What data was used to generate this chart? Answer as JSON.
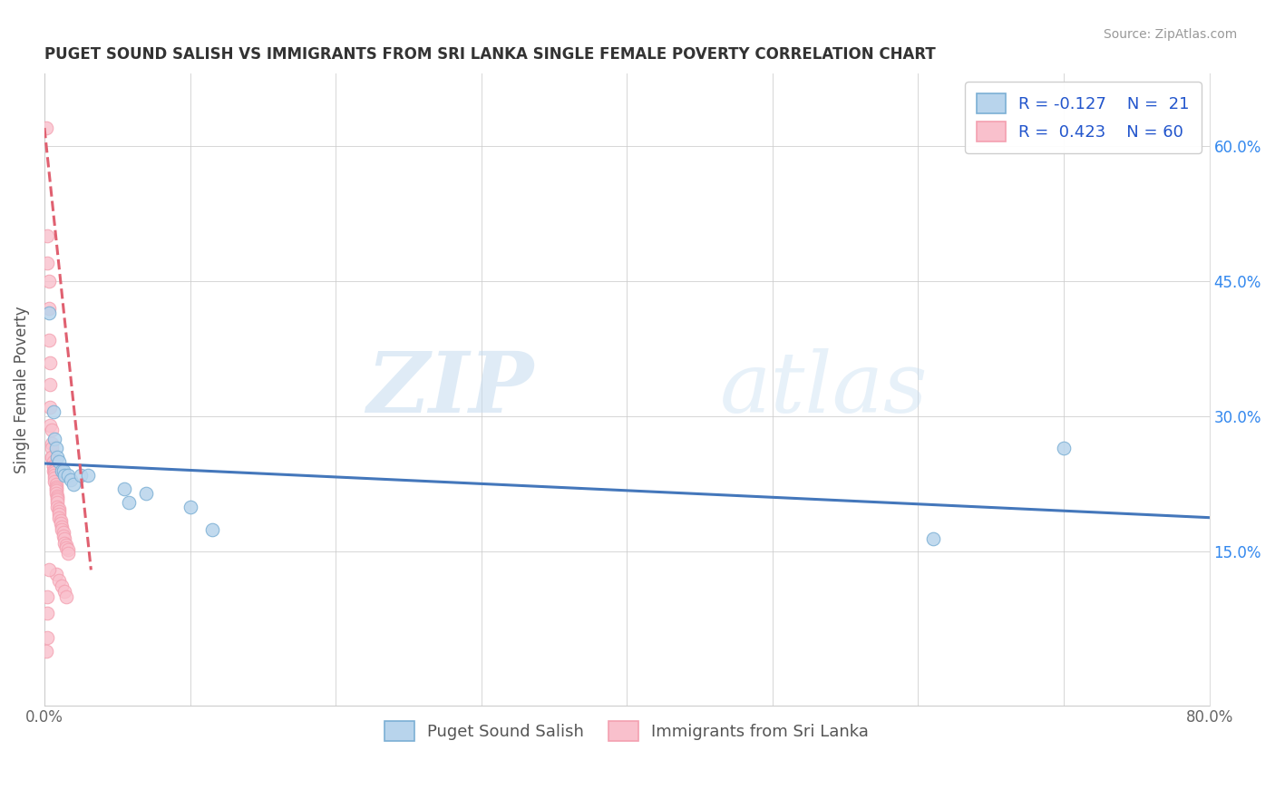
{
  "title": "PUGET SOUND SALISH VS IMMIGRANTS FROM SRI LANKA SINGLE FEMALE POVERTY CORRELATION CHART",
  "source": "Source: ZipAtlas.com",
  "ylabel": "Single Female Poverty",
  "xlim": [
    0.0,
    0.8
  ],
  "ylim": [
    -0.02,
    0.68
  ],
  "ytick_positions": [
    0.15,
    0.3,
    0.45,
    0.6
  ],
  "ytick_labels": [
    "15.0%",
    "30.0%",
    "45.0%",
    "60.0%"
  ],
  "xtick_positions": [
    0.0,
    0.1,
    0.2,
    0.3,
    0.4,
    0.5,
    0.6,
    0.7,
    0.8
  ],
  "xtick_labels": [
    "0.0%",
    "",
    "",
    "",
    "",
    "",
    "",
    "",
    "80.0%"
  ],
  "legend_labels": [
    "Puget Sound Salish",
    "Immigrants from Sri Lanka"
  ],
  "R_blue": -0.127,
  "N_blue": 21,
  "R_pink": 0.423,
  "N_pink": 60,
  "blue_color": "#7BAFD4",
  "pink_color": "#F4A0B0",
  "blue_fill": "#B8D4EC",
  "pink_fill": "#F9C0CC",
  "trend_blue_color": "#4477BB",
  "trend_pink_color": "#E06070",
  "watermark_zip": "ZIP",
  "watermark_atlas": "atlas",
  "blue_scatter": [
    [
      0.003,
      0.415
    ],
    [
      0.006,
      0.305
    ],
    [
      0.007,
      0.275
    ],
    [
      0.008,
      0.265
    ],
    [
      0.009,
      0.255
    ],
    [
      0.01,
      0.25
    ],
    [
      0.012,
      0.24
    ],
    [
      0.013,
      0.24
    ],
    [
      0.014,
      0.235
    ],
    [
      0.016,
      0.235
    ],
    [
      0.018,
      0.23
    ],
    [
      0.02,
      0.225
    ],
    [
      0.025,
      0.235
    ],
    [
      0.03,
      0.235
    ],
    [
      0.055,
      0.22
    ],
    [
      0.058,
      0.205
    ],
    [
      0.07,
      0.215
    ],
    [
      0.1,
      0.2
    ],
    [
      0.115,
      0.175
    ],
    [
      0.61,
      0.165
    ],
    [
      0.7,
      0.265
    ]
  ],
  "pink_scatter": [
    [
      0.001,
      0.62
    ],
    [
      0.002,
      0.5
    ],
    [
      0.002,
      0.47
    ],
    [
      0.003,
      0.45
    ],
    [
      0.003,
      0.42
    ],
    [
      0.003,
      0.385
    ],
    [
      0.004,
      0.36
    ],
    [
      0.004,
      0.335
    ],
    [
      0.004,
      0.31
    ],
    [
      0.004,
      0.29
    ],
    [
      0.005,
      0.285
    ],
    [
      0.005,
      0.27
    ],
    [
      0.005,
      0.265
    ],
    [
      0.005,
      0.255
    ],
    [
      0.005,
      0.255
    ],
    [
      0.006,
      0.25
    ],
    [
      0.006,
      0.245
    ],
    [
      0.006,
      0.245
    ],
    [
      0.006,
      0.24
    ],
    [
      0.007,
      0.24
    ],
    [
      0.007,
      0.238
    ],
    [
      0.007,
      0.235
    ],
    [
      0.007,
      0.232
    ],
    [
      0.007,
      0.228
    ],
    [
      0.008,
      0.225
    ],
    [
      0.008,
      0.222
    ],
    [
      0.008,
      0.22
    ],
    [
      0.008,
      0.218
    ],
    [
      0.008,
      0.215
    ],
    [
      0.009,
      0.212
    ],
    [
      0.009,
      0.21
    ],
    [
      0.009,
      0.208
    ],
    [
      0.009,
      0.205
    ],
    [
      0.009,
      0.2
    ],
    [
      0.01,
      0.198
    ],
    [
      0.01,
      0.195
    ],
    [
      0.01,
      0.192
    ],
    [
      0.01,
      0.188
    ],
    [
      0.011,
      0.185
    ],
    [
      0.011,
      0.182
    ],
    [
      0.012,
      0.178
    ],
    [
      0.012,
      0.175
    ],
    [
      0.013,
      0.172
    ],
    [
      0.013,
      0.168
    ],
    [
      0.014,
      0.165
    ],
    [
      0.014,
      0.16
    ],
    [
      0.015,
      0.158
    ],
    [
      0.015,
      0.155
    ],
    [
      0.016,
      0.152
    ],
    [
      0.016,
      0.148
    ],
    [
      0.002,
      0.1
    ],
    [
      0.002,
      0.082
    ],
    [
      0.008,
      0.125
    ],
    [
      0.01,
      0.118
    ],
    [
      0.012,
      0.112
    ],
    [
      0.014,
      0.106
    ],
    [
      0.015,
      0.1
    ],
    [
      0.002,
      0.055
    ],
    [
      0.001,
      0.04
    ],
    [
      0.003,
      0.13
    ]
  ]
}
